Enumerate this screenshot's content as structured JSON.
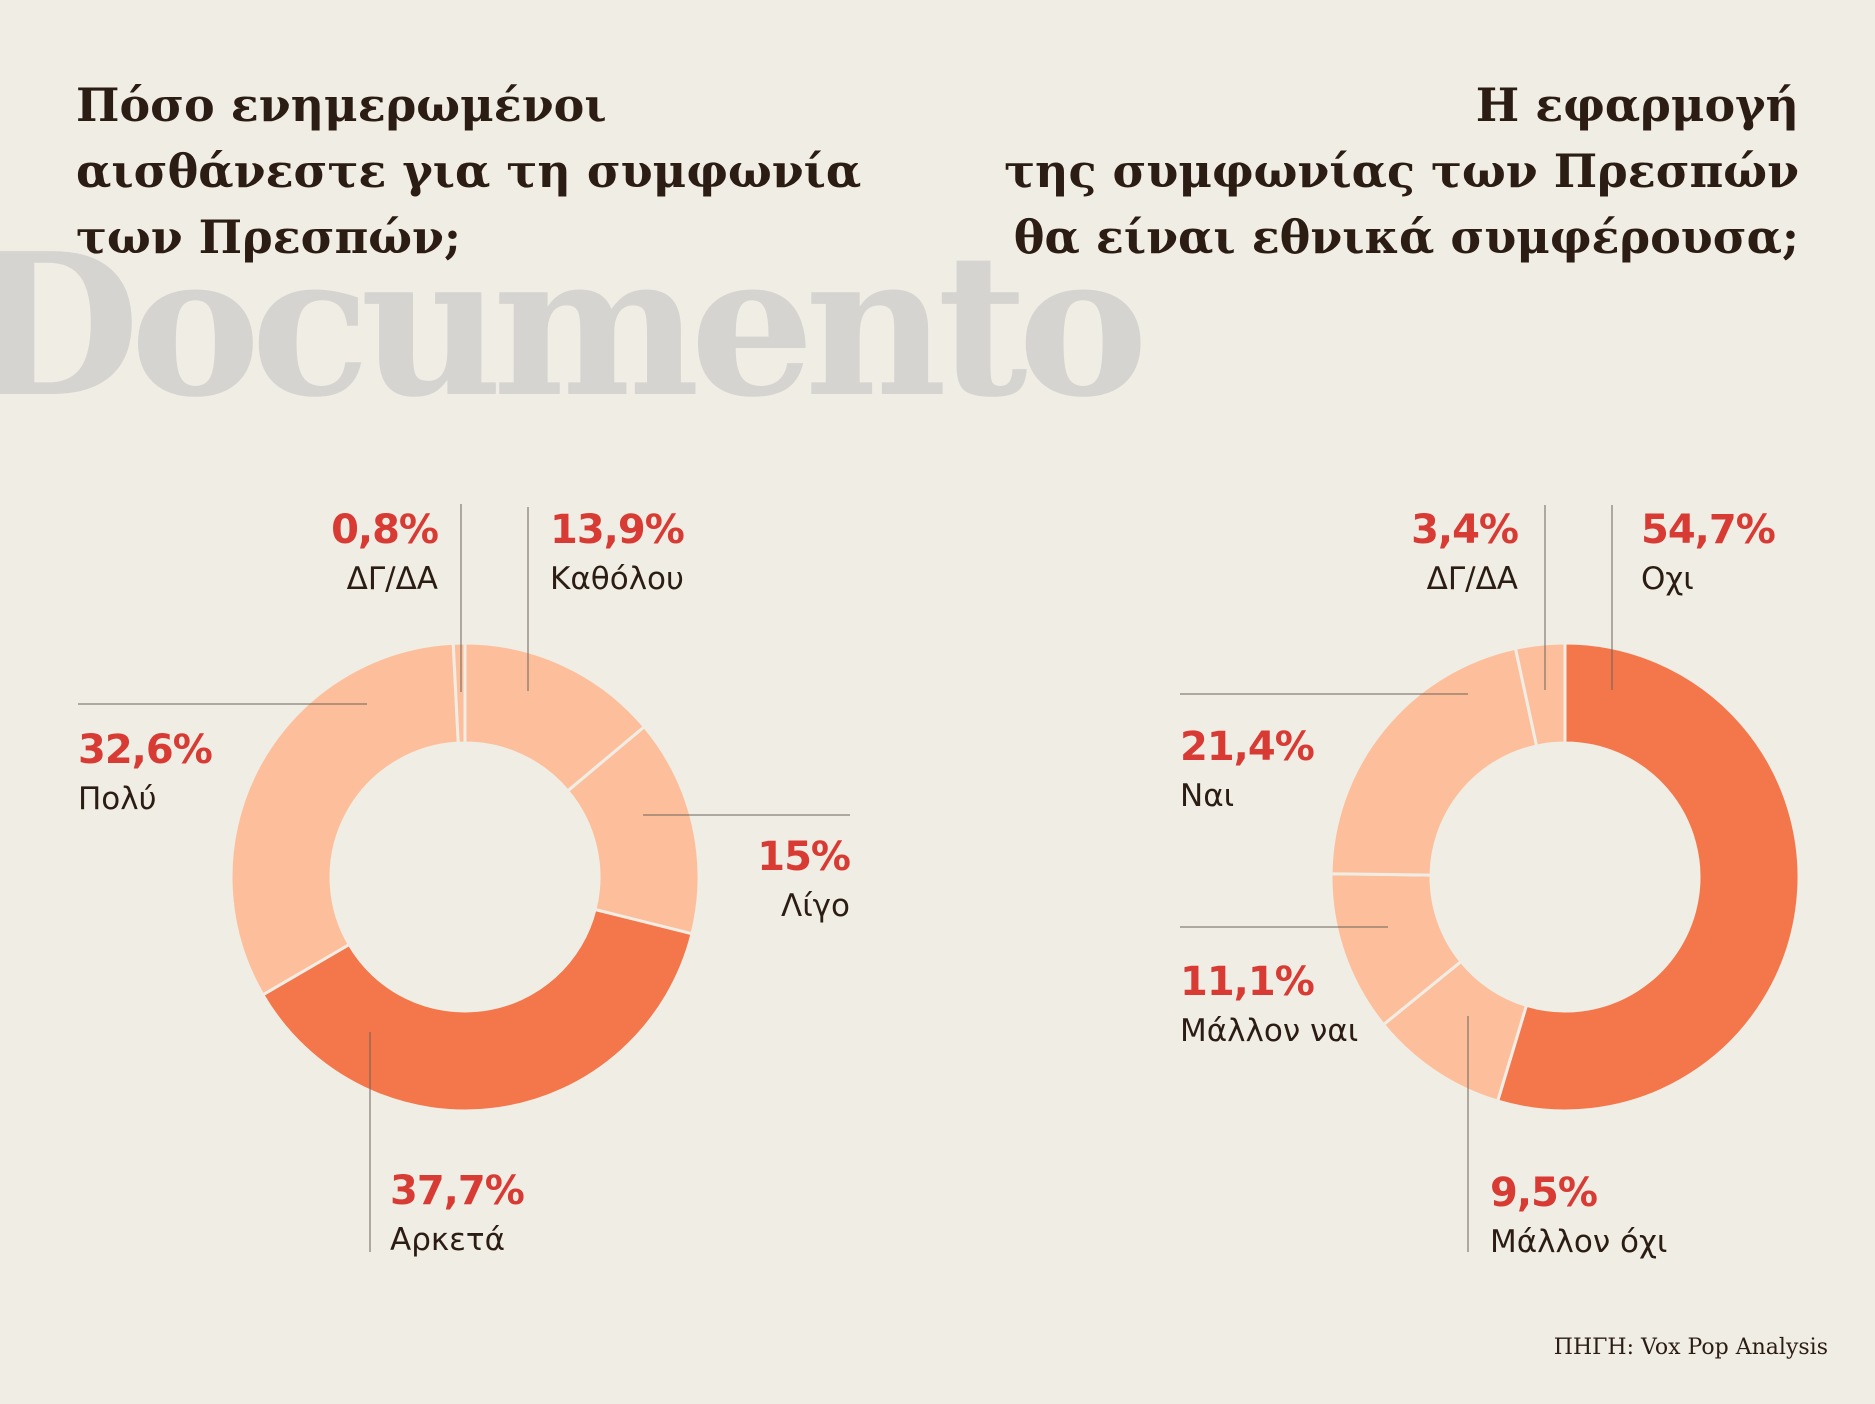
{
  "titles": {
    "left": [
      "Πόσο ενημερωμένοι",
      "αισθάνεστε για τη συμφωνία",
      "των Πρεσπών;"
    ],
    "right": [
      "Η εφαρμογή",
      "της συμφωνίας των Πρεσπών",
      "θα είναι εθνικά συμφέρουσα;"
    ]
  },
  "watermark": "Documento",
  "source": "ΠΗΓΗ: Vox Pop Analysis",
  "colors": {
    "background": "#f0ede4",
    "light_slice": "#fdbf9b",
    "dark_slice": "#f4764b",
    "percent_text": "#d83a34",
    "label_text": "#2b1d14",
    "leader_line": "#6b635b"
  },
  "chart_data": [
    {
      "type": "pie",
      "donut": true,
      "title": "Πόσο ενημερωμένοι αισθάνεστε για τη συμφωνία των Πρεσπών;",
      "categories": [
        "Καθόλου",
        "Λίγο",
        "Αρκετά",
        "Πολύ",
        "ΔΓ/ΔΑ"
      ],
      "values": [
        13.9,
        15,
        37.7,
        32.6,
        0.8
      ],
      "value_labels": [
        "13,9%",
        "15%",
        "37,7%",
        "32,6%",
        "0,8%"
      ],
      "highlight": [
        false,
        false,
        true,
        false,
        false
      ]
    },
    {
      "type": "pie",
      "donut": true,
      "title": "Η εφαρμογή της συμφωνίας των Πρεσπών θα είναι εθνικά συμφέρουσα;",
      "categories": [
        "Οχι",
        "Μάλλον όχι",
        "Μάλλον ναι",
        "Ναι",
        "ΔΓ/ΔΑ"
      ],
      "values": [
        54.7,
        9.5,
        11.1,
        21.4,
        3.4
      ],
      "value_labels": [
        "54,7%",
        "9,5%",
        "11,1%",
        "21,4%",
        "3,4%"
      ],
      "highlight": [
        true,
        false,
        false,
        false,
        false
      ]
    }
  ]
}
